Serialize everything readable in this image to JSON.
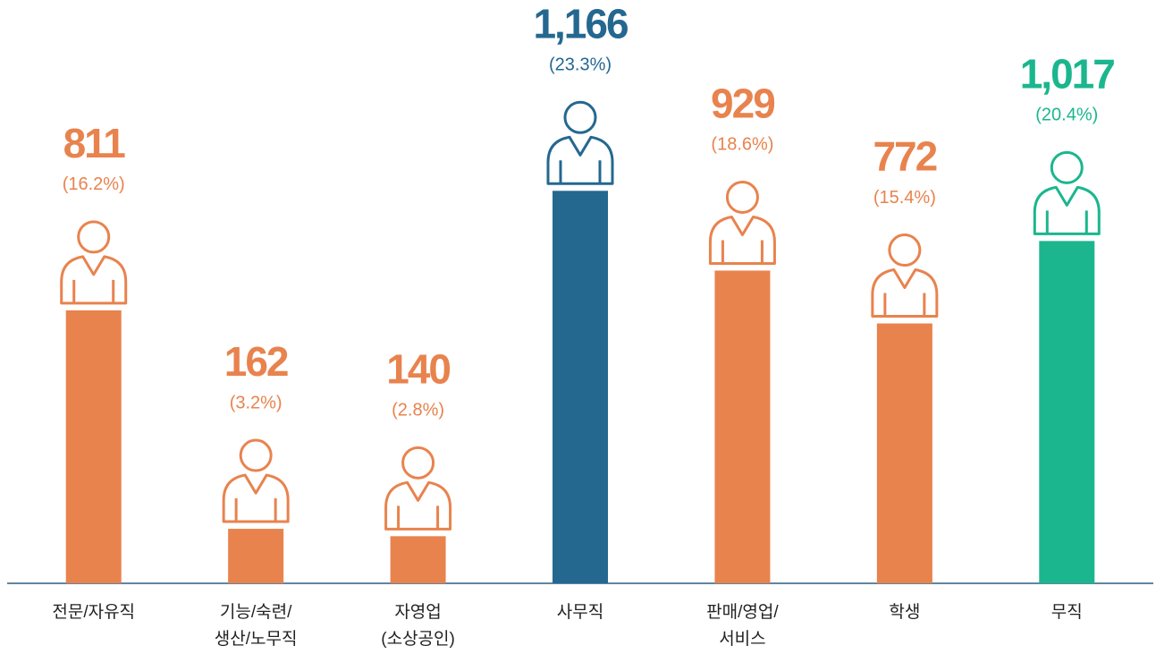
{
  "chart_data": {
    "type": "bar",
    "categories": [
      "전문/자유직",
      "기능/숙련/\n생산/노무직",
      "자영업\n(소상공인)",
      "사무직",
      "판매/영업/\n서비스",
      "학생",
      "무직"
    ],
    "values": [
      811,
      162,
      140,
      1166,
      929,
      772,
      1017
    ],
    "value_labels": [
      "811",
      "162",
      "140",
      "1,166",
      "929",
      "772",
      "1,017"
    ],
    "share_labels": [
      "(16.2%)",
      "(3.2%)",
      "(2.8%)",
      "(23.3%)",
      "(18.6%)",
      "(15.4%)",
      "(20.4%)"
    ],
    "colors": [
      "#e8834e",
      "#e8834e",
      "#e8834e",
      "#246890",
      "#e8834e",
      "#e8834e",
      "#1bb68e"
    ],
    "ylim": [
      0,
      1600
    ]
  }
}
